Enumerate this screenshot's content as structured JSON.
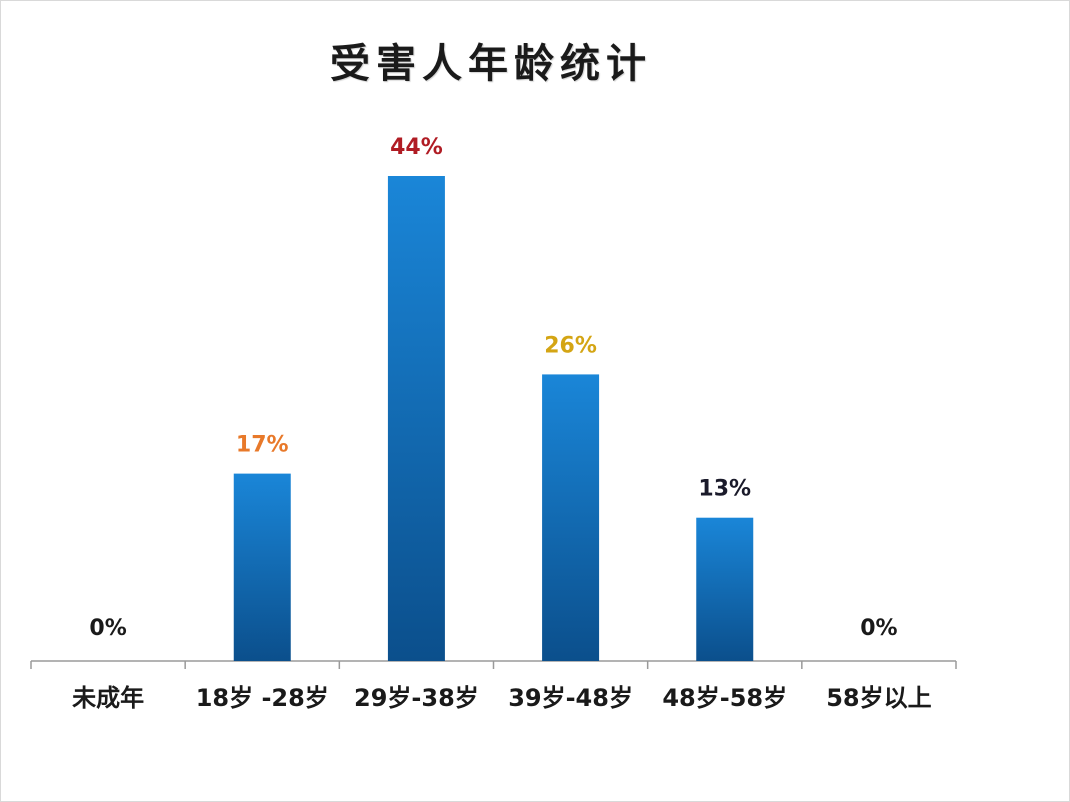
{
  "chart_data": {
    "type": "bar",
    "title": "受害人年龄统计",
    "categories": [
      "未成年",
      "18岁 -28岁",
      "29岁-38岁",
      "39岁-48岁",
      "48岁-58岁",
      "58岁以上"
    ],
    "values": [
      0,
      17,
      44,
      26,
      13,
      0
    ],
    "data_labels": [
      "0%",
      "17%",
      "44%",
      "26%",
      "13%",
      "0%"
    ],
    "label_colors": [
      "#1a1a1a",
      "#e8792a",
      "#b01c24",
      "#d4a514",
      "#1a1a2a",
      "#1a1a1a"
    ],
    "bar_color_top": "#1a86d8",
    "bar_color_bottom": "#0b4f8c",
    "ylim": [
      0,
      44
    ],
    "grid": false,
    "legend": "none",
    "xlabel": "",
    "ylabel": ""
  }
}
